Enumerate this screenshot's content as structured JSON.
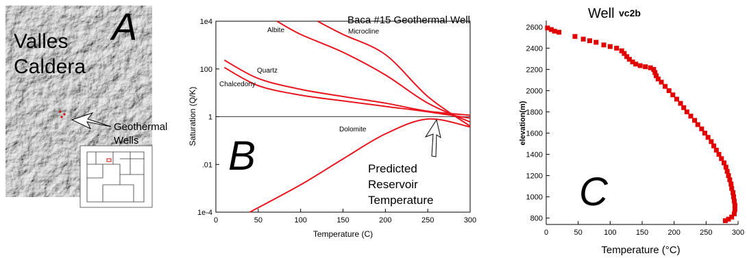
{
  "map": {
    "letter": "A",
    "title": [
      "Valles",
      "Caldera"
    ],
    "label": [
      "Geothermal",
      "Wells"
    ]
  },
  "chart_data": [
    {
      "type": "line",
      "title": "Baca #15 Geothermal Well",
      "letter": "B",
      "xlabel": "Temperature (C)",
      "ylabel": "Saturation (Q/K)",
      "annotation": [
        "Predicted",
        "Reservoir",
        "Temperature"
      ],
      "xlim": [
        0,
        300
      ],
      "xticks": [
        0,
        50,
        100,
        150,
        200,
        250,
        300
      ],
      "ylim": [
        0.0001,
        10000
      ],
      "yscale": "log",
      "yticks": [
        {
          "value": 0.0001,
          "label": "1e-4"
        },
        {
          "value": 0.01,
          "label": ".01"
        },
        1,
        100,
        {
          "value": 10000,
          "label": "1e4"
        }
      ],
      "series": [
        {
          "name": "Albite",
          "color": "#e8141e",
          "x": [
            72,
            100,
            150,
            200,
            250,
            300
          ],
          "values": [
            10000,
            2800,
            500,
            56,
            3.7,
            0.6
          ]
        },
        {
          "name": "Microcline",
          "color": "#e8141e",
          "x": [
            120,
            150,
            200,
            250,
            300
          ],
          "values": [
            10000,
            2800,
            400,
            7,
            0.4
          ]
        },
        {
          "name": "Quartz",
          "color": "#e8141e",
          "x": [
            10,
            50,
            100,
            150,
            200,
            250,
            300
          ],
          "values": [
            234,
            40,
            14,
            7,
            3.7,
            1.7,
            1.15
          ]
        },
        {
          "name": "Chalcedony",
          "color": "#e8141e",
          "x": [
            10,
            50,
            100,
            150,
            200,
            250,
            300
          ],
          "values": [
            115,
            20,
            8,
            4.6,
            2.7,
            1.6,
            0.87
          ]
        },
        {
          "name": "Dolomite",
          "color": "#e8141e",
          "x": [
            40,
            100,
            150,
            200,
            250,
            300
          ],
          "values": [
            0.0001,
            0.0014,
            0.017,
            0.19,
            0.8,
            0.37
          ]
        }
      ]
    },
    {
      "type": "scatter",
      "title": "Well",
      "title_suffix": "vc2b",
      "letter": "C",
      "xlabel": "Temperature (°C)",
      "ylabel": "elevation(m)",
      "xlim": [
        0,
        300
      ],
      "xticks": [
        0,
        50,
        100,
        150,
        200,
        250,
        300
      ],
      "ylim": [
        740,
        2660
      ],
      "yticks": [
        800,
        1000,
        1200,
        1400,
        1600,
        1800,
        2000,
        2200,
        2400,
        2600
      ],
      "color": "#e00000",
      "x": [
        2,
        8,
        13,
        20,
        45,
        58,
        68,
        78,
        90,
        100,
        110,
        118,
        122,
        126,
        130,
        135,
        140,
        147,
        155,
        163,
        168,
        170,
        172,
        175,
        180,
        186,
        192,
        198,
        204,
        210,
        215,
        220,
        226,
        232,
        237,
        243,
        248,
        253,
        258,
        262,
        266,
        270,
        274,
        278,
        281,
        283,
        285,
        287,
        289,
        290,
        292,
        293,
        294,
        295,
        295,
        294,
        290,
        285,
        280
      ],
      "values": [
        2590,
        2575,
        2560,
        2550,
        2510,
        2485,
        2470,
        2455,
        2430,
        2415,
        2400,
        2375,
        2350,
        2320,
        2295,
        2270,
        2250,
        2235,
        2225,
        2215,
        2200,
        2170,
        2140,
        2110,
        2080,
        2040,
        2000,
        1960,
        1920,
        1880,
        1840,
        1800,
        1760,
        1720,
        1680,
        1640,
        1600,
        1560,
        1520,
        1480,
        1440,
        1400,
        1360,
        1320,
        1280,
        1240,
        1200,
        1160,
        1120,
        1080,
        1040,
        1000,
        960,
        920,
        880,
        840,
        810,
        790,
        775
      ]
    }
  ]
}
